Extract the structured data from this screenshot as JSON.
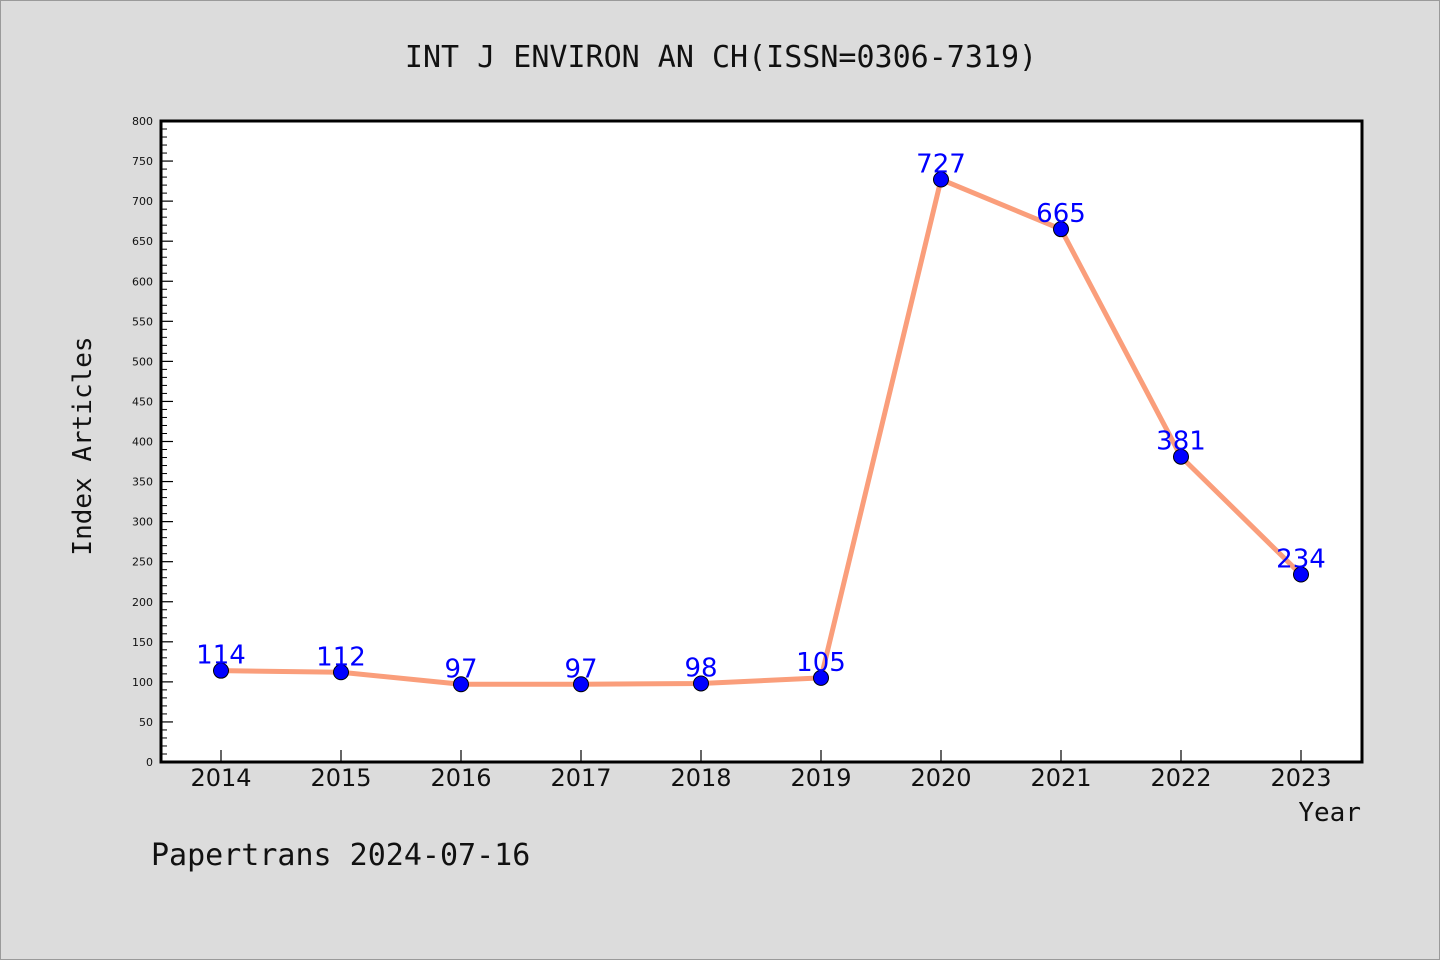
{
  "footer": "Papertrans 2024-07-16",
  "colors": {
    "line": "#fa9e7b",
    "marker": "#0000ff",
    "data_label": "#0000ff",
    "plot_background": "#ffffff",
    "page_background": "#dcdcdc"
  },
  "chart_data": {
    "type": "line",
    "title": "INT J ENVIRON AN CH(ISSN=0306-7319)",
    "xlabel": "Year",
    "ylabel": "Index Articles",
    "categories": [
      "2014",
      "2015",
      "2016",
      "2017",
      "2018",
      "2019",
      "2020",
      "2021",
      "2022",
      "2023"
    ],
    "series": [
      {
        "values": [
          114,
          112,
          97,
          97,
          98,
          105,
          727,
          665,
          381,
          234
        ]
      }
    ],
    "ylim": [
      0,
      800
    ],
    "yticks": [
      0,
      50,
      100,
      150,
      200,
      250,
      300,
      350,
      400,
      450,
      500,
      550,
      600,
      650,
      700,
      750,
      800
    ],
    "data_labels": [
      "114",
      "112",
      "97",
      "97",
      "98",
      "105",
      "727",
      "665",
      "381",
      "234"
    ],
    "grid": false,
    "legend": "none"
  }
}
